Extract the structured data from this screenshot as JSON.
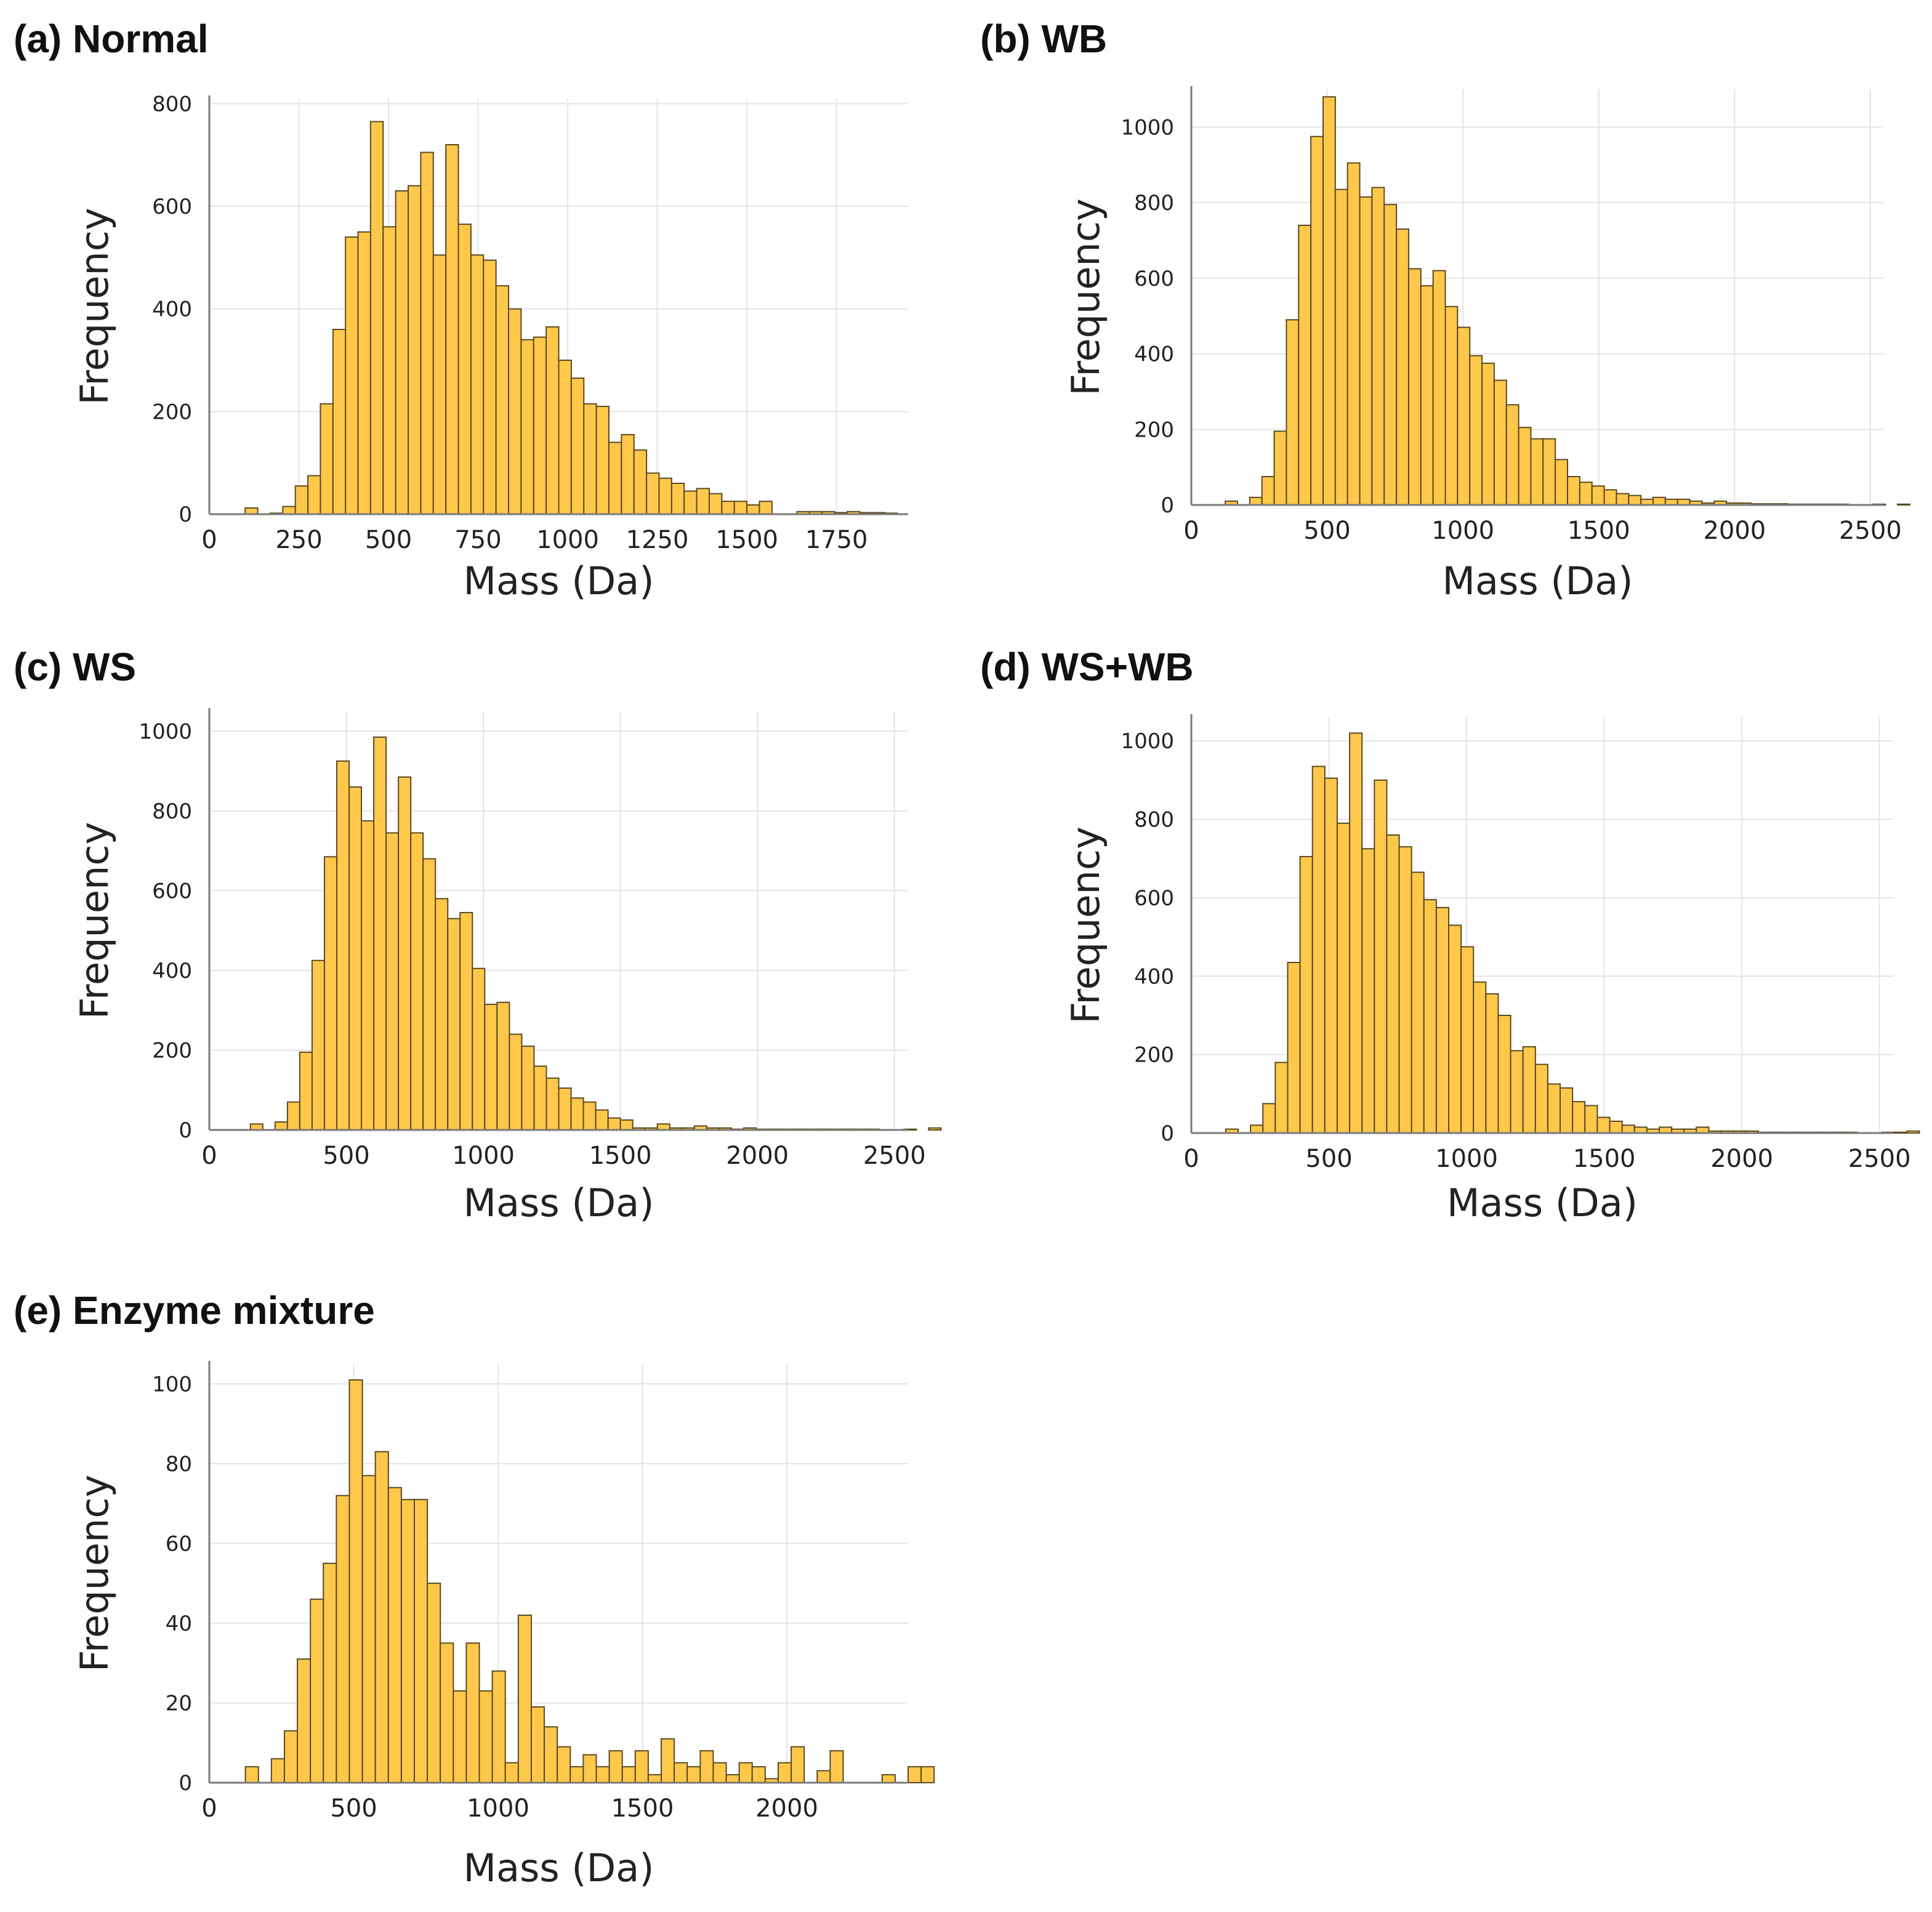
{
  "colors": {
    "bar_fill": "#FFC84B",
    "bar_edge": "#5a4a24",
    "grid": "#e4e4e4"
  },
  "chart_data": [
    {
      "type": "bar",
      "title": "(a) Normal",
      "xlabel": "Mass (Da)",
      "ylabel": "Frequency",
      "xlim": [
        0,
        1950
      ],
      "ylim": [
        0,
        810
      ],
      "xticks": [
        0,
        250,
        500,
        750,
        1000,
        1250,
        1500,
        1750
      ],
      "xtick_labels": [
        "0",
        "250",
        "500",
        "750",
        "1000",
        "1250",
        "1500",
        "1750"
      ],
      "yticks": [
        0,
        200,
        400,
        600,
        800
      ],
      "ytick_labels": [
        "0",
        "200",
        "400",
        "600",
        "800"
      ],
      "grid": true,
      "bin_start": 100,
      "bin_width": 35,
      "values": [
        12,
        0,
        2,
        15,
        55,
        75,
        215,
        360,
        540,
        550,
        765,
        560,
        630,
        640,
        705,
        505,
        720,
        565,
        505,
        495,
        445,
        400,
        340,
        345,
        365,
        300,
        265,
        215,
        210,
        140,
        155,
        125,
        80,
        70,
        60,
        45,
        50,
        40,
        25,
        25,
        18,
        25,
        0,
        0,
        5,
        5,
        5,
        3,
        5,
        3,
        3,
        2
      ]
    },
    {
      "type": "bar",
      "title": "(b) WB",
      "xlabel": "Mass (Da)",
      "ylabel": "Frequency",
      "xlim": [
        0,
        2550
      ],
      "ylim": [
        0,
        1100
      ],
      "xticks": [
        0,
        500,
        1000,
        1500,
        2000,
        2500
      ],
      "xtick_labels": [
        "0",
        "500",
        "1000",
        "1500",
        "2000",
        "2500"
      ],
      "yticks": [
        0,
        200,
        400,
        600,
        800,
        1000
      ],
      "ytick_labels": [
        "0",
        "200",
        "400",
        "600",
        "800",
        "1000"
      ],
      "grid": true,
      "bin_start": 125,
      "bin_width": 45,
      "values": [
        10,
        0,
        20,
        75,
        195,
        490,
        740,
        975,
        1080,
        835,
        905,
        815,
        840,
        795,
        730,
        625,
        580,
        620,
        525,
        470,
        395,
        375,
        330,
        265,
        205,
        175,
        175,
        120,
        75,
        60,
        50,
        40,
        30,
        25,
        15,
        20,
        15,
        15,
        10,
        5,
        10,
        5,
        5,
        3,
        3,
        3,
        2,
        2,
        2,
        2,
        2,
        0,
        0,
        2,
        0,
        2
      ]
    },
    {
      "type": "bar",
      "title": "(c) WS",
      "xlabel": "Mass (Da)",
      "ylabel": "Frequency",
      "xlim": [
        0,
        2550
      ],
      "ylim": [
        0,
        1050
      ],
      "xticks": [
        0,
        500,
        1000,
        1500,
        2000,
        2500
      ],
      "xtick_labels": [
        "0",
        "500",
        "1000",
        "1500",
        "2000",
        "2500"
      ],
      "yticks": [
        0,
        200,
        400,
        600,
        800,
        1000
      ],
      "ytick_labels": [
        "0",
        "200",
        "400",
        "600",
        "800",
        "1000"
      ],
      "grid": true,
      "bin_start": 150,
      "bin_width": 45,
      "values": [
        15,
        0,
        20,
        70,
        195,
        425,
        685,
        925,
        860,
        775,
        985,
        745,
        885,
        745,
        680,
        580,
        530,
        545,
        405,
        315,
        320,
        240,
        210,
        160,
        130,
        105,
        80,
        70,
        50,
        30,
        25,
        5,
        5,
        15,
        5,
        5,
        10,
        5,
        5,
        2,
        5,
        2,
        2,
        2,
        2,
        2,
        2,
        2,
        2,
        2,
        2,
        0,
        0,
        2,
        0,
        5
      ]
    },
    {
      "type": "bar",
      "title": "(d) WS+WB",
      "xlabel": "Mass (Da)",
      "ylabel": "Frequency",
      "xlim": [
        0,
        2550
      ],
      "ylim": [
        0,
        1060
      ],
      "xticks": [
        0,
        500,
        1000,
        1500,
        2000,
        2500
      ],
      "xtick_labels": [
        "0",
        "500",
        "1000",
        "1500",
        "2000",
        "2500"
      ],
      "yticks": [
        0,
        200,
        400,
        600,
        800,
        1000
      ],
      "ytick_labels": [
        "0",
        "200",
        "400",
        "600",
        "800",
        "1000"
      ],
      "grid": true,
      "bin_start": 125,
      "bin_width": 45,
      "values": [
        10,
        0,
        20,
        75,
        180,
        435,
        705,
        935,
        905,
        790,
        1020,
        725,
        900,
        760,
        730,
        665,
        595,
        575,
        530,
        475,
        385,
        355,
        300,
        210,
        220,
        175,
        125,
        115,
        80,
        70,
        40,
        30,
        20,
        15,
        10,
        15,
        10,
        10,
        15,
        5,
        5,
        5,
        5,
        2,
        2,
        2,
        2,
        2,
        2,
        2,
        2,
        0,
        0,
        2,
        2,
        5
      ]
    },
    {
      "type": "bar",
      "title": "(e) Enzyme mixture",
      "xlabel": "Mass (Da)",
      "ylabel": "Frequency",
      "xlim": [
        0,
        2420
      ],
      "ylim": [
        0,
        105
      ],
      "xticks": [
        0,
        500,
        1000,
        1500,
        2000
      ],
      "xtick_labels": [
        "0",
        "500",
        "1000",
        "1500",
        "2000"
      ],
      "yticks": [
        0,
        20,
        40,
        60,
        80,
        100
      ],
      "ytick_labels": [
        "0",
        "20",
        "40",
        "60",
        "80",
        "100"
      ],
      "grid": true,
      "bin_start": 125,
      "bin_width": 45,
      "values": [
        4,
        0,
        6,
        13,
        31,
        46,
        55,
        72,
        101,
        77,
        83,
        74,
        71,
        71,
        50,
        35,
        23,
        35,
        23,
        28,
        5,
        42,
        19,
        14,
        9,
        4,
        7,
        4,
        8,
        4,
        8,
        2,
        11,
        5,
        4,
        8,
        5,
        2,
        5,
        4,
        1,
        5,
        9,
        0,
        3,
        8,
        0,
        0,
        0,
        2,
        0,
        4,
        4
      ]
    }
  ]
}
